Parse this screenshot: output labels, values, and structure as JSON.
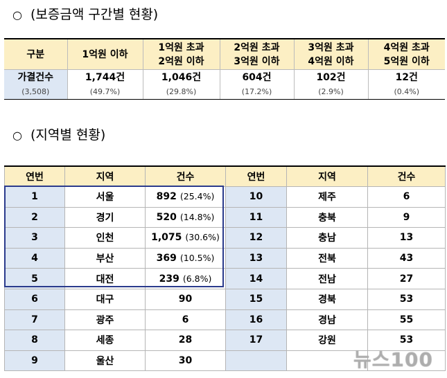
{
  "section1": {
    "bullet": "○",
    "title": "(보증금액 구간별 현황)"
  },
  "section2": {
    "bullet": "○",
    "title": "(지역별 현황)"
  },
  "table1": {
    "headers": [
      "구분",
      "1억원 이하",
      "1억원 초과\n2억원 이하",
      "2억원 초과\n3억원 이하",
      "3억원 초과\n4억원 이하",
      "4억원 초과\n5억원 이하"
    ],
    "counts": [
      "가결건수",
      "1,744건",
      "1,046건",
      "604건",
      "102건",
      "12건"
    ],
    "shares": [
      "(3,508)",
      "(49.7%)",
      "(29.8%)",
      "(17.2%)",
      "(2.9%)",
      "(0.4%)"
    ]
  },
  "table2": {
    "headers": [
      "연번",
      "지역",
      "건수",
      "연번",
      "지역",
      "건수"
    ],
    "rows": [
      {
        "n1": "1",
        "r1": "서울",
        "c1": "892",
        "p1": "(25.4%)",
        "n2": "10",
        "r2": "제주",
        "c2": "6"
      },
      {
        "n1": "2",
        "r1": "경기",
        "c1": "520",
        "p1": "(14.8%)",
        "n2": "11",
        "r2": "충북",
        "c2": "9"
      },
      {
        "n1": "3",
        "r1": "인천",
        "c1": "1,075",
        "p1": "(30.6%)",
        "n2": "12",
        "r2": "충남",
        "c2": "13"
      },
      {
        "n1": "4",
        "r1": "부산",
        "c1": "369",
        "p1": "(10.5%)",
        "n2": "13",
        "r2": "전북",
        "c2": "43"
      },
      {
        "n1": "5",
        "r1": "대전",
        "c1": "239",
        "p1": "(6.8%)",
        "n2": "14",
        "r2": "전남",
        "c2": "27"
      },
      {
        "n1": "6",
        "r1": "대구",
        "c1": "90",
        "p1": "",
        "n2": "15",
        "r2": "경북",
        "c2": "53"
      },
      {
        "n1": "7",
        "r1": "광주",
        "c1": "6",
        "p1": "",
        "n2": "16",
        "r2": "경남",
        "c2": "55"
      },
      {
        "n1": "8",
        "r1": "세종",
        "c1": "28",
        "p1": "",
        "n2": "17",
        "r2": "강원",
        "c2": "53"
      },
      {
        "n1": "9",
        "r1": "울산",
        "c1": "30",
        "p1": "",
        "n2": "",
        "r2": "",
        "c2": ""
      }
    ]
  },
  "watermark": "뉴스100"
}
